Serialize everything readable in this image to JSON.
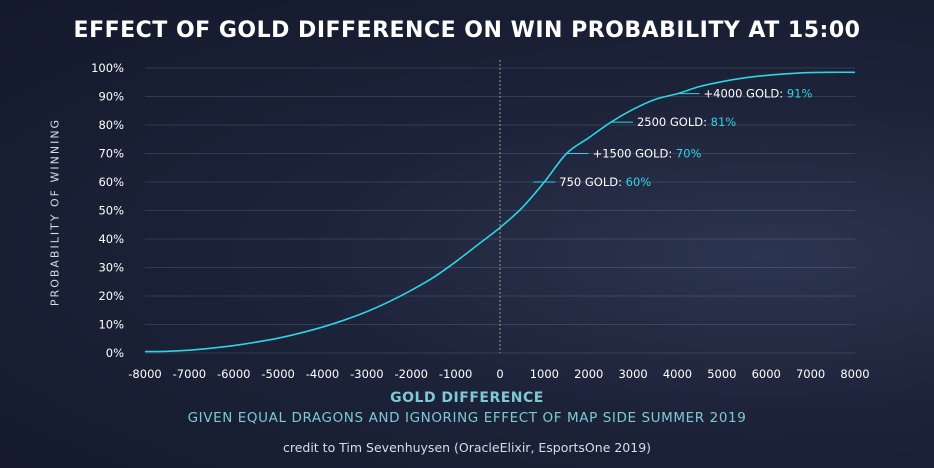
{
  "chart_data": {
    "type": "line",
    "title": "EFFECT OF GOLD DIFFERENCE ON WIN PROBABILITY AT 15:00",
    "xlabel": "GOLD DIFFERENCE",
    "ylabel": "PROBABILITY OF WINNING",
    "subtitle": "GIVEN EQUAL DRAGONS AND IGNORING EFFECT OF MAP SIDE SUMMER 2019",
    "credit": "credit to Tim Sevenhuysen (OracleElixir, EsportsOne 2019)",
    "xlim": [
      -8000,
      8000
    ],
    "ylim": [
      0,
      100
    ],
    "x_ticks": [
      "-8000",
      "-7000",
      "-6000",
      "-5000",
      "-4000",
      "-3000",
      "-2000",
      "-1000",
      "0",
      "1000",
      "2000",
      "3000",
      "4000",
      "5000",
      "6000",
      "7000",
      "8000"
    ],
    "y_ticks": [
      "0%",
      "10%",
      "20%",
      "30%",
      "40%",
      "50%",
      "60%",
      "70%",
      "80%",
      "90%",
      "100%"
    ],
    "grid": true,
    "line_color": "#2fd3e6",
    "series": [
      {
        "x": [
          -8000,
          -7500,
          -7000,
          -6500,
          -6000,
          -5500,
          -5000,
          -4500,
          -4000,
          -3500,
          -3000,
          -2500,
          -2000,
          -1500,
          -1000,
          -500,
          0,
          500,
          1000,
          1500,
          2000,
          2500,
          3000,
          3500,
          4000,
          4500,
          5000,
          5500,
          6000,
          6500,
          7000,
          7500,
          8000
        ],
        "y": [
          0.5,
          0.6,
          1.0,
          1.7,
          2.6,
          3.8,
          5.2,
          7.0,
          9.1,
          11.6,
          14.5,
          18.0,
          22.0,
          26.5,
          32.0,
          38.0,
          44.0,
          51.0,
          60.0,
          70.0,
          75.5,
          81.0,
          85.5,
          89.0,
          91.0,
          93.5,
          95.2,
          96.5,
          97.4,
          98.0,
          98.4,
          98.5,
          98.5
        ]
      }
    ],
    "annotations": [
      {
        "label": "750 GOLD: ",
        "value": "60%",
        "x": 750,
        "y": 60
      },
      {
        "label": "+1500 GOLD: ",
        "value": "70%",
        "x": 1500,
        "y": 70
      },
      {
        "label": "2500 GOLD: ",
        "value": "81%",
        "x": 2500,
        "y": 81
      },
      {
        "label": "+4000 GOLD: ",
        "value": "91%",
        "x": 4000,
        "y": 91
      }
    ]
  }
}
